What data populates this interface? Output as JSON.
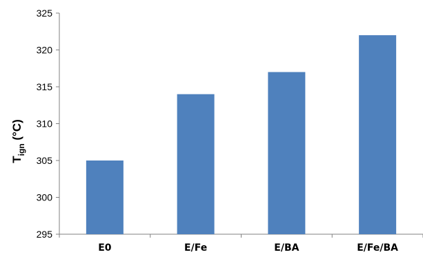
{
  "chart_data": {
    "type": "bar",
    "categories": [
      "E0",
      "E/Fe",
      "E/BA",
      "E/Fe/BA"
    ],
    "values": [
      305,
      314,
      317,
      322
    ],
    "title": "",
    "xlabel": "",
    "ylabel": {
      "main": "T",
      "subscript": "ign",
      "unit": " (°C)"
    },
    "ylim": [
      295,
      325
    ],
    "yticks": [
      295,
      300,
      305,
      310,
      315,
      320,
      325
    ],
    "grid": false,
    "legend": "none",
    "bar_color": "#4f81bd"
  }
}
